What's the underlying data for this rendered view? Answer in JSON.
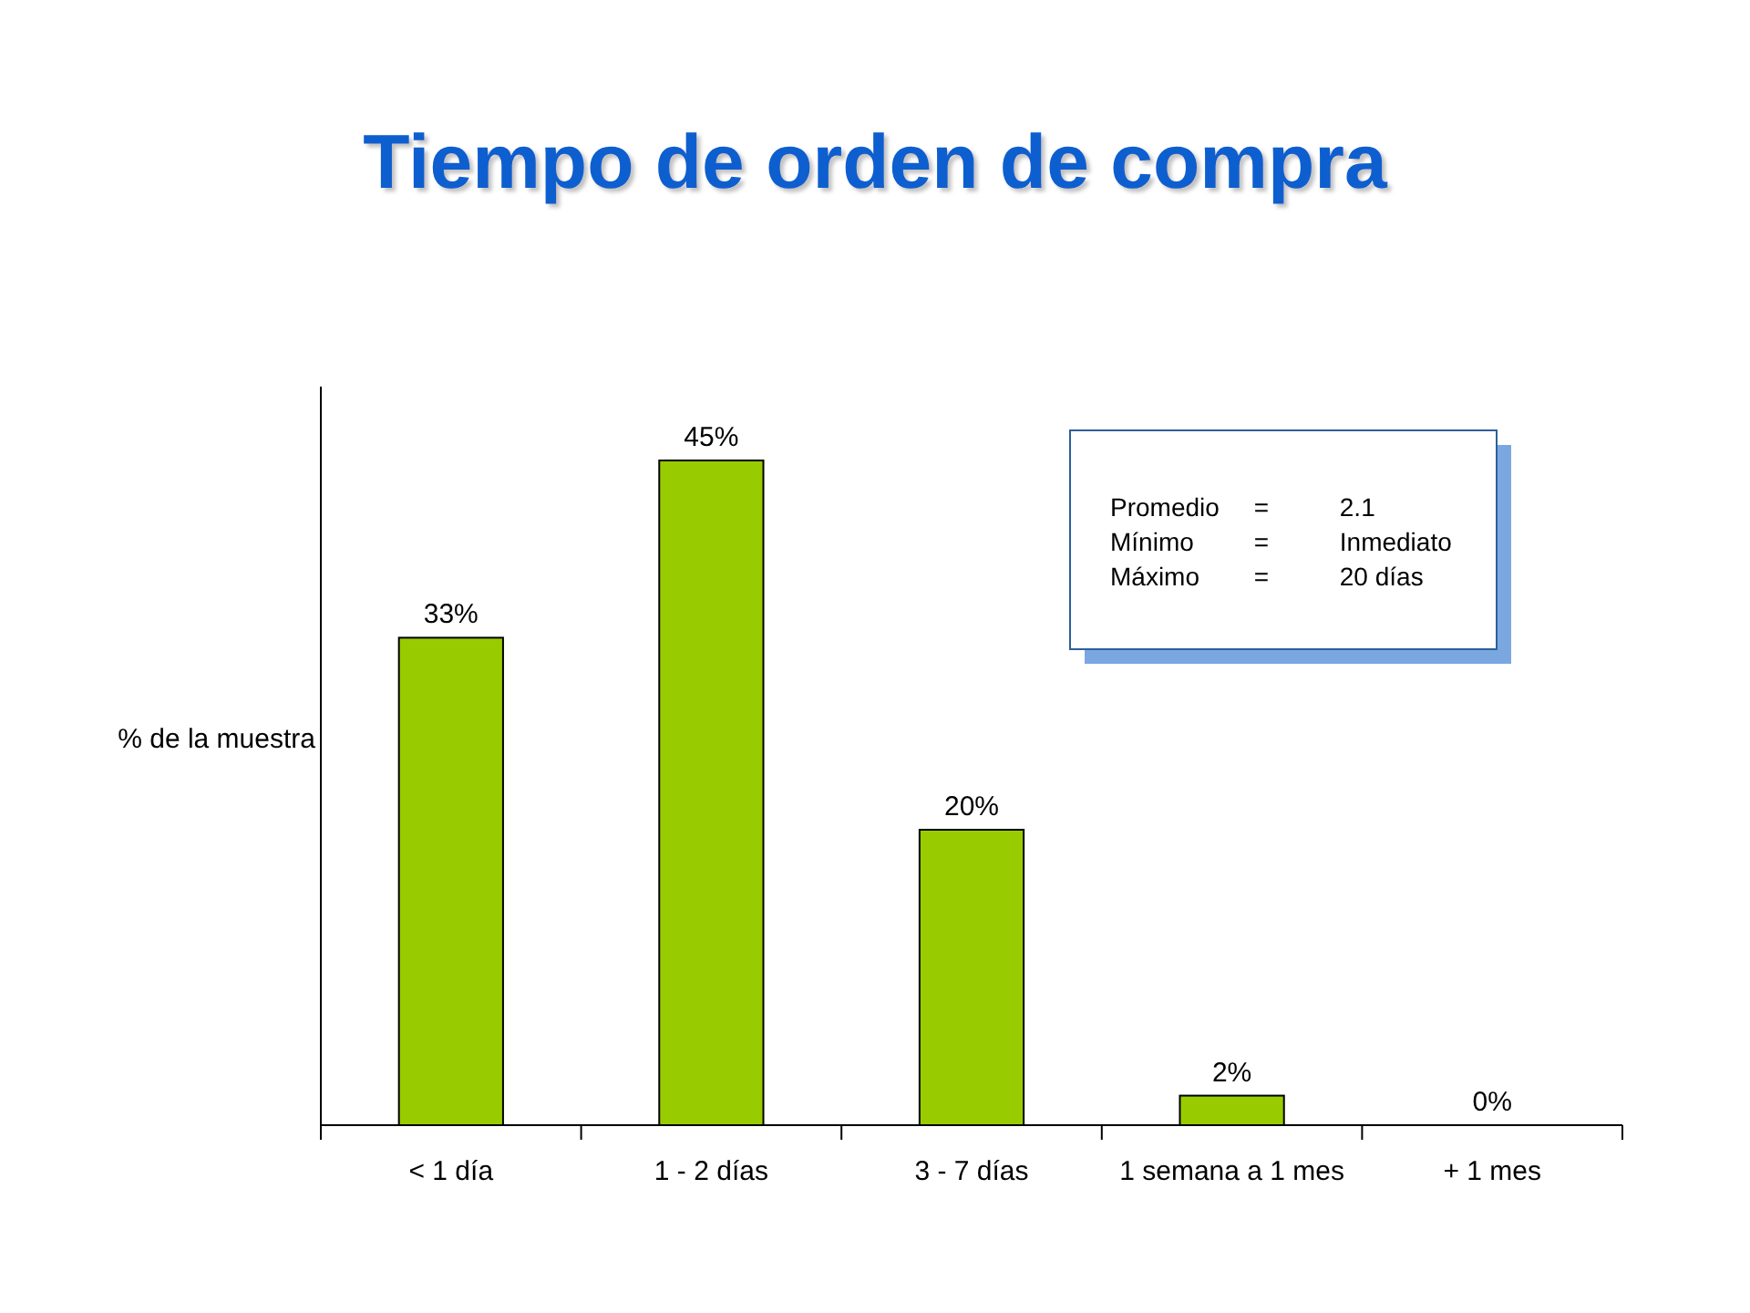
{
  "chart_data": {
    "type": "bar",
    "title": "Tiempo de orden de compra",
    "ylabel": "% de la muestra",
    "categories": [
      "< 1 día",
      "1 - 2 días",
      "3 - 7 días",
      "1 semana a 1 mes",
      "+ 1 mes"
    ],
    "values": [
      33,
      45,
      20,
      2,
      0
    ],
    "color": "#99cc00",
    "ylim": [
      0,
      50
    ],
    "value_labels": [
      "33%",
      "45%",
      "20%",
      "2%",
      "0%"
    ],
    "annotations": [
      "Promedio = 2.1",
      "Mínimo = Inmediato",
      "Máximo = 20 días"
    ]
  }
}
